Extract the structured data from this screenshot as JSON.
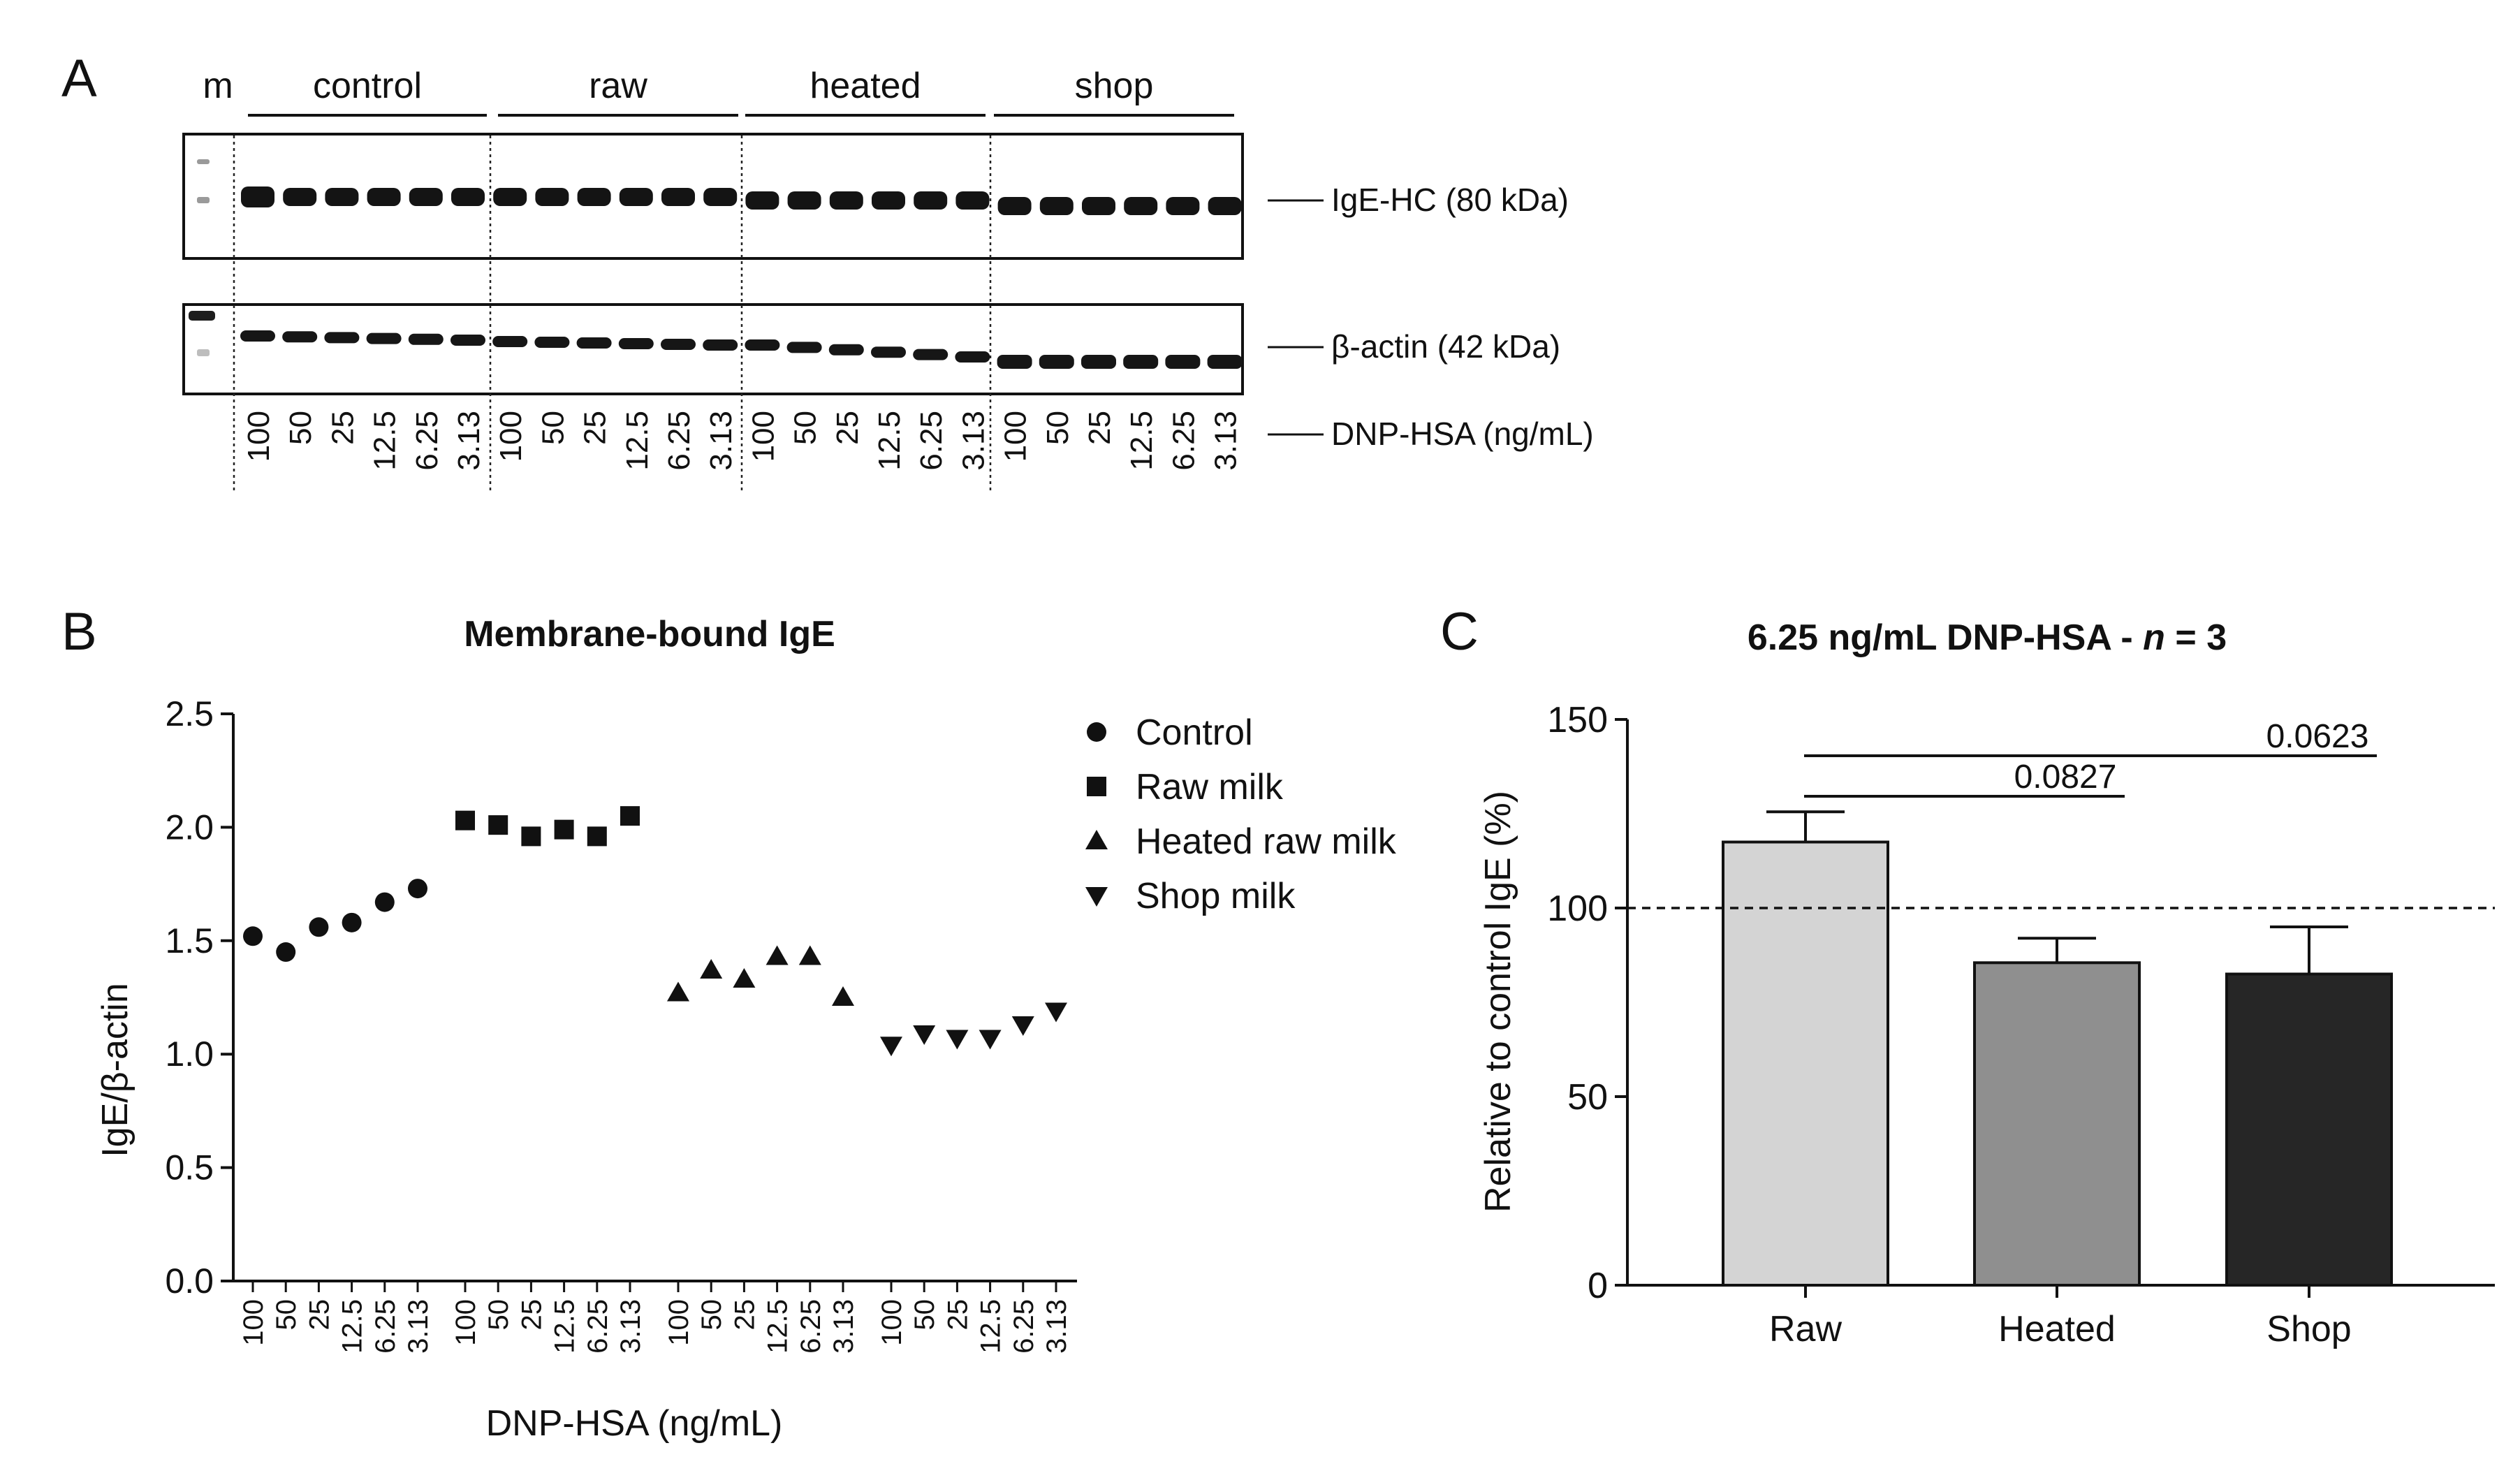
{
  "panel_a": {
    "letter": "A",
    "marker_label": "m",
    "groups": [
      "control",
      "raw",
      "heated",
      "shop"
    ],
    "band_labels": {
      "ige": "IgE-HC (80 kDa)",
      "actin": "β-actin (42 kDa)",
      "dnp": "DNP-HSA (ng/mL)"
    },
    "concentrations": [
      "100",
      "50",
      "25",
      "12.5",
      "6.25",
      "3.13"
    ]
  },
  "chart_data": [
    {
      "type": "scatter",
      "panel": "B",
      "title": "Membrane-bound IgE",
      "xlabel": "DNP-HSA (ng/mL)",
      "ylabel": "IgE/β-actin",
      "ylim": [
        0,
        2.5
      ],
      "yticks": [
        "0.0",
        "0.5",
        "1.0",
        "1.5",
        "2.0",
        "2.5"
      ],
      "categories": [
        "100",
        "50",
        "25",
        "12.5",
        "6.25",
        "3.13"
      ],
      "legend_position": "top-right",
      "series": [
        {
          "name": "Control",
          "marker": "circle",
          "values": [
            1.52,
            1.45,
            1.56,
            1.58,
            1.67,
            1.73
          ]
        },
        {
          "name": "Raw milk",
          "marker": "square",
          "values": [
            2.03,
            2.01,
            1.96,
            1.99,
            1.96,
            2.05
          ]
        },
        {
          "name": "Heated raw milk",
          "marker": "triangle-up",
          "values": [
            1.27,
            1.37,
            1.33,
            1.43,
            1.43,
            1.25
          ]
        },
        {
          "name": "Shop milk",
          "marker": "triangle-down",
          "values": [
            1.04,
            1.09,
            1.07,
            1.07,
            1.13,
            1.19
          ]
        }
      ]
    },
    {
      "type": "bar",
      "panel": "C",
      "title_prefix": "6.25 ng/mL DNP-HSA - ",
      "title_italic": "n",
      "title_suffix": " = 3",
      "ylabel": "Relative to control IgE (%)",
      "ylim": [
        0,
        150
      ],
      "yticks": [
        "0",
        "50",
        "100",
        "150"
      ],
      "reference_line": 100,
      "categories": [
        "Raw",
        "Heated",
        "Shop"
      ],
      "values": [
        117.5,
        85.5,
        82.5
      ],
      "errors": [
        8,
        6.5,
        12.5
      ],
      "colors": [
        "#d4d4d4",
        "#8f8f8f",
        "#262626"
      ],
      "comparisons": [
        {
          "from": "Raw",
          "to": "Heated",
          "p": "0.0827"
        },
        {
          "from": "Raw",
          "to": "Shop",
          "p": "0.0623"
        }
      ]
    }
  ]
}
